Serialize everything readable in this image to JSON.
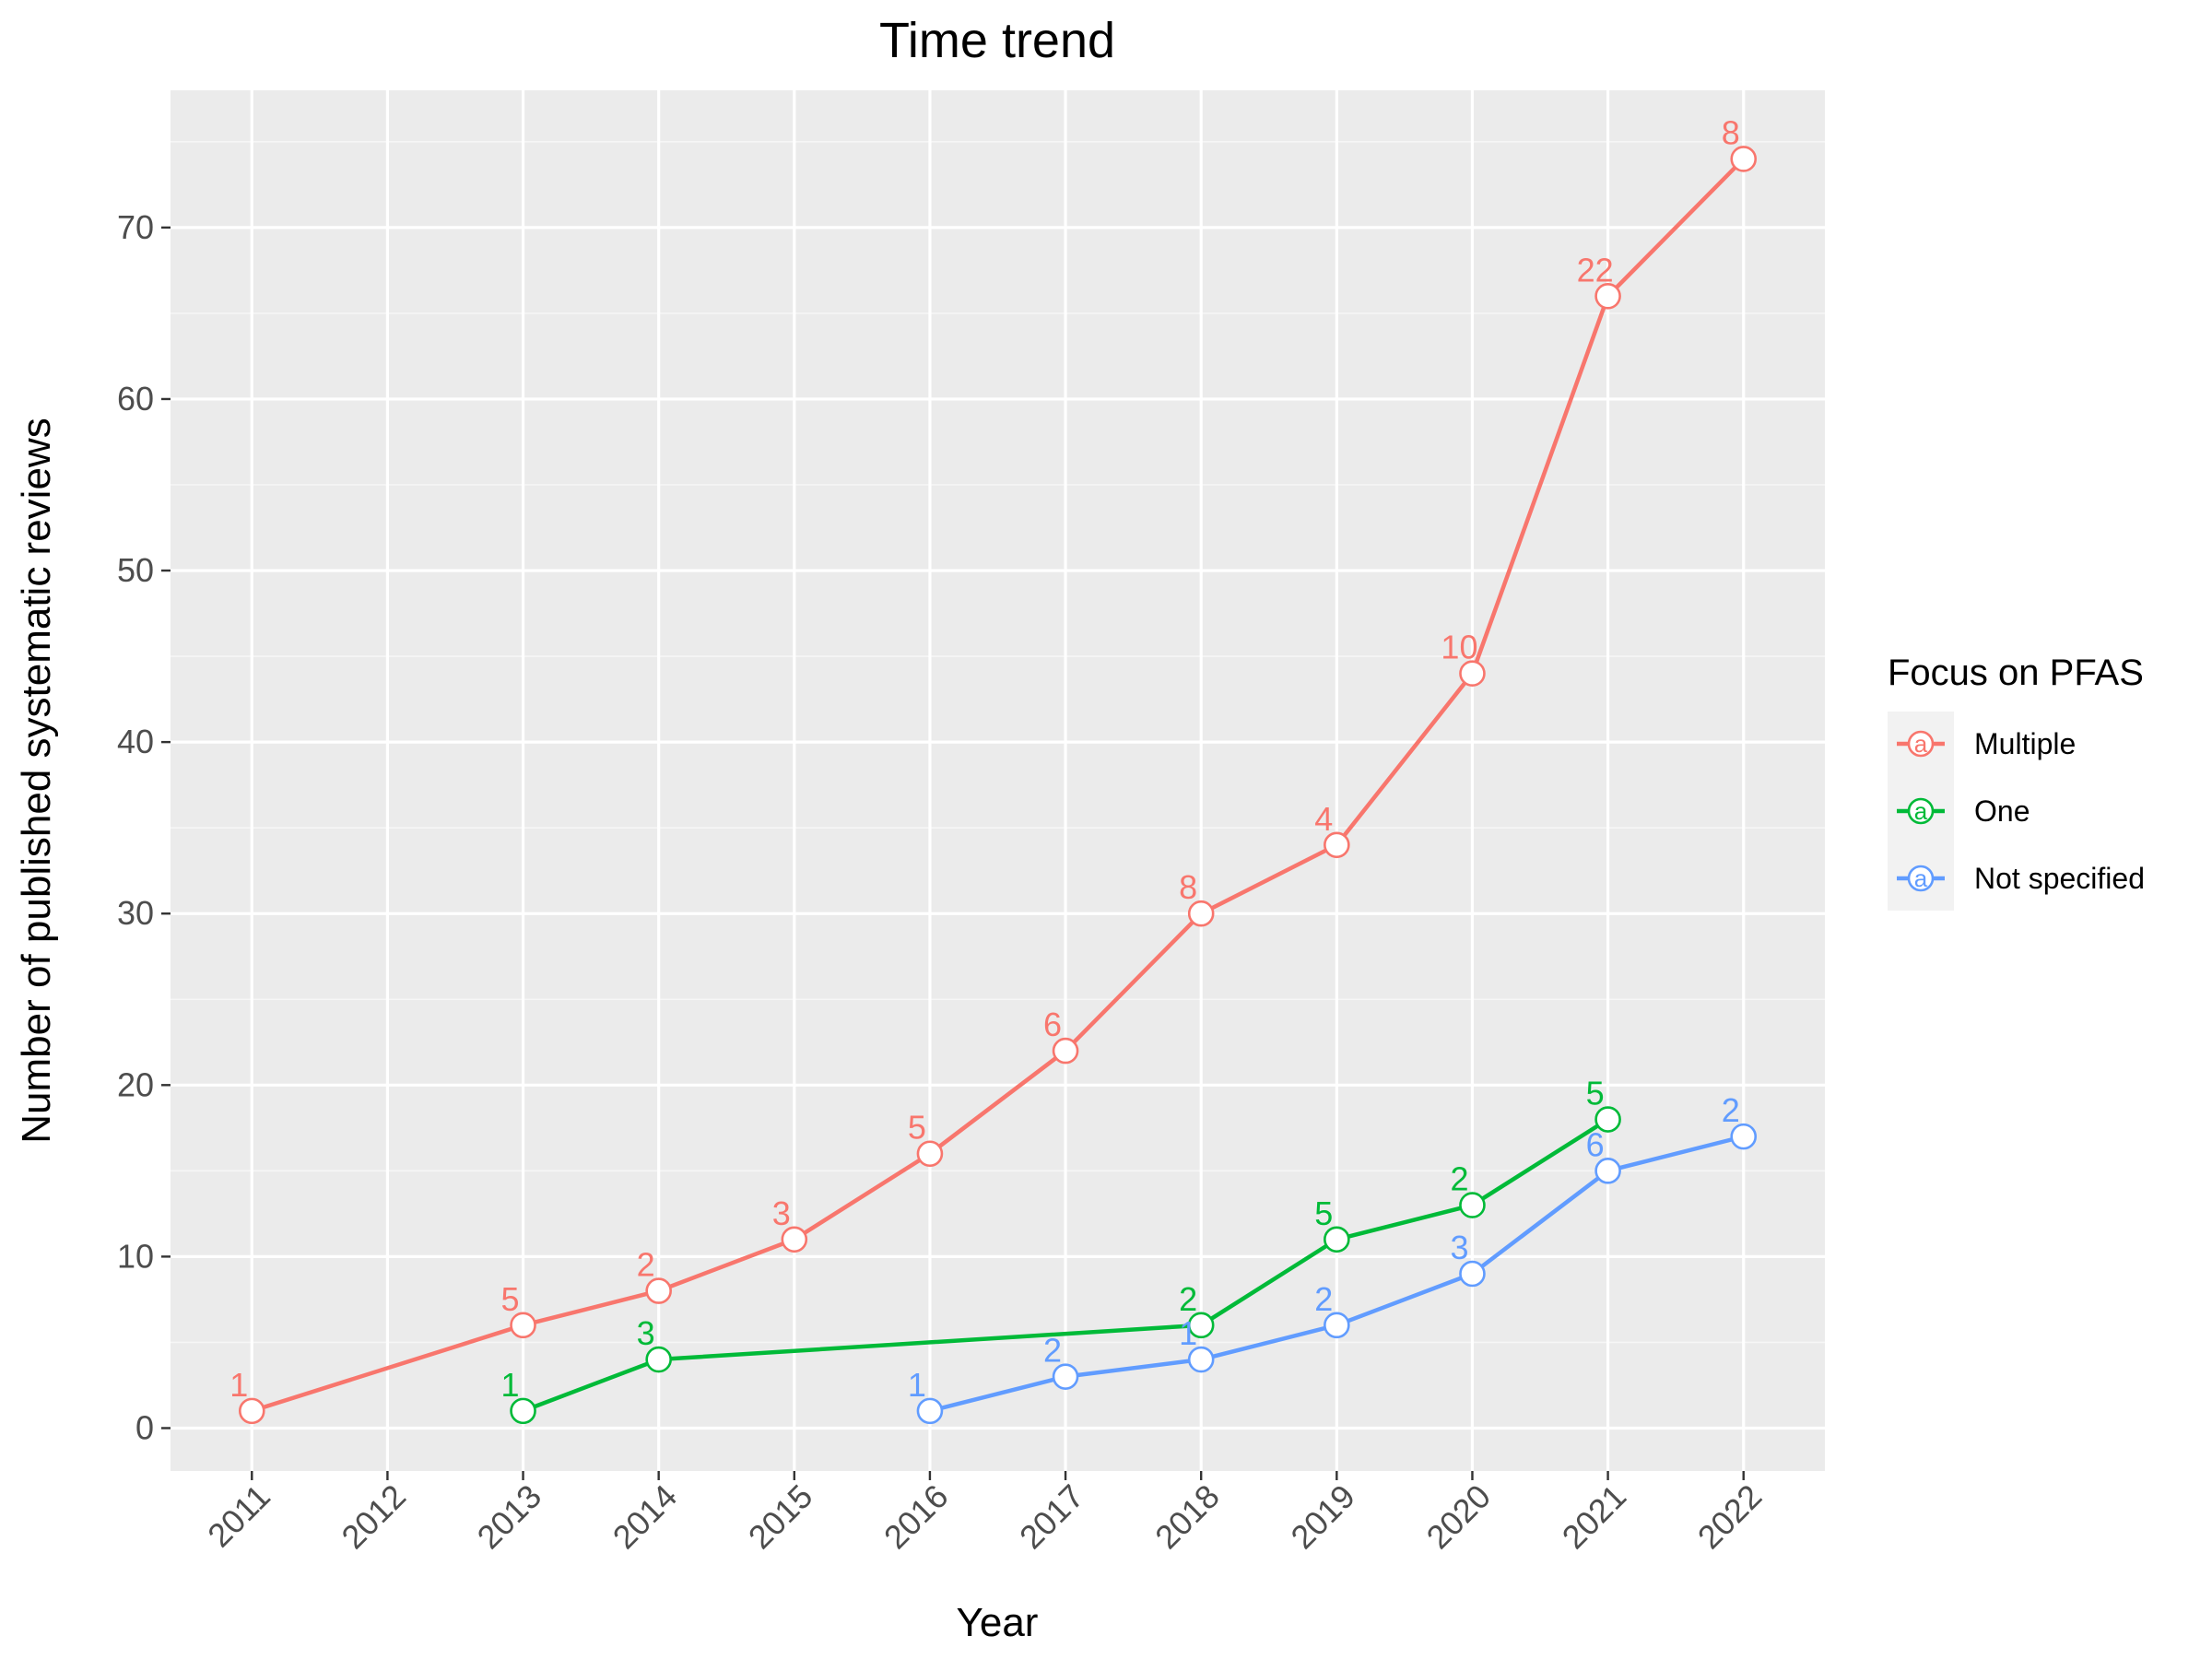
{
  "chart_data": {
    "type": "line",
    "title": "Time trend",
    "xlabel": "Year",
    "ylabel": "Number of published systematic reviews",
    "x_categories": [
      "2011",
      "2012",
      "2013",
      "2014",
      "2015",
      "2016",
      "2017",
      "2018",
      "2019",
      "2020",
      "2021",
      "2022"
    ],
    "ylim": [
      -2.5,
      78
    ],
    "y_ticks": [
      0,
      10,
      20,
      30,
      40,
      50,
      60,
      70
    ],
    "grid": true,
    "legend": {
      "title": "Focus on PFAS",
      "position": "right",
      "key_glyph": "a"
    },
    "series": [
      {
        "name": "Multiple",
        "color": "#F8766D",
        "points": [
          {
            "x": "2011",
            "y": 1,
            "label": "1"
          },
          {
            "x": "2013",
            "y": 6,
            "label": "5"
          },
          {
            "x": "2014",
            "y": 8,
            "label": "2"
          },
          {
            "x": "2015",
            "y": 11,
            "label": "3"
          },
          {
            "x": "2016",
            "y": 16,
            "label": "5"
          },
          {
            "x": "2017",
            "y": 22,
            "label": "6"
          },
          {
            "x": "2018",
            "y": 30,
            "label": "8"
          },
          {
            "x": "2019",
            "y": 34,
            "label": "4"
          },
          {
            "x": "2020",
            "y": 44,
            "label": "10"
          },
          {
            "x": "2021",
            "y": 66,
            "label": "22"
          },
          {
            "x": "2022",
            "y": 74,
            "label": "8"
          }
        ]
      },
      {
        "name": "One",
        "color": "#00BA38",
        "points": [
          {
            "x": "2013",
            "y": 1,
            "label": "1"
          },
          {
            "x": "2014",
            "y": 4,
            "label": "3"
          },
          {
            "x": "2018",
            "y": 6,
            "label": "2"
          },
          {
            "x": "2019",
            "y": 11,
            "label": "5"
          },
          {
            "x": "2020",
            "y": 13,
            "label": "2"
          },
          {
            "x": "2021",
            "y": 18,
            "label": "5"
          }
        ]
      },
      {
        "name": "Not specified",
        "color": "#619CFF",
        "points": [
          {
            "x": "2016",
            "y": 1,
            "label": "1"
          },
          {
            "x": "2017",
            "y": 3,
            "label": "2"
          },
          {
            "x": "2018",
            "y": 4,
            "label": "1"
          },
          {
            "x": "2019",
            "y": 6,
            "label": "2"
          },
          {
            "x": "2020",
            "y": 9,
            "label": "3"
          },
          {
            "x": "2021",
            "y": 15,
            "label": "6"
          },
          {
            "x": "2022",
            "y": 17,
            "label": "2"
          }
        ]
      }
    ]
  }
}
